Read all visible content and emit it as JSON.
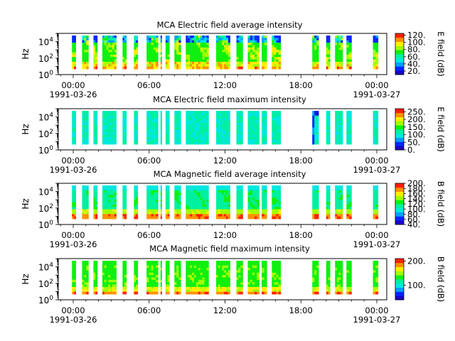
{
  "colors": {
    "colormap": [
      "#1a00c8",
      "#0028ff",
      "#00a0ff",
      "#00e8e0",
      "#00f0a0",
      "#10f010",
      "#a0ff00",
      "#ffee00",
      "#ff9000",
      "#ff2000"
    ],
    "axis": "#000000",
    "background": "#ffffff"
  },
  "chart_data": [
    {
      "type": "heatmap",
      "title": "MCA  Electric field average intensity",
      "ylabel": "Hz",
      "yscale": "log",
      "ylim": [
        1,
        100000
      ],
      "yticks": [
        {
          "value": 1,
          "base": "10",
          "exp": "0"
        },
        {
          "value": 100,
          "base": "10",
          "exp": "2"
        },
        {
          "value": 10000,
          "base": "10",
          "exp": "4"
        }
      ],
      "xticks": [
        "00:00",
        "06:00",
        "12:00",
        "18:00",
        "00:00"
      ],
      "xdates": [
        "1991-03-26",
        "",
        "",
        "",
        "1991-03-27"
      ],
      "colorbar": {
        "label": "E field (dB)",
        "min": 10,
        "max": 125,
        "ticks": [
          20,
          40,
          60,
          80,
          100,
          120
        ],
        "tick_labels": [
          "20.",
          "40.",
          "60.",
          "80.",
          "100.",
          "120."
        ]
      },
      "style": "avg_e"
    },
    {
      "type": "heatmap",
      "title": "MCA  Electric field maximum intensity",
      "ylabel": "Hz",
      "yscale": "log",
      "ylim": [
        1,
        100000
      ],
      "yticks": [
        {
          "value": 1,
          "base": "10",
          "exp": "0"
        },
        {
          "value": 100,
          "base": "10",
          "exp": "2"
        },
        {
          "value": 10000,
          "base": "10",
          "exp": "4"
        }
      ],
      "xticks": [
        "00:00",
        "06:00",
        "12:00",
        "18:00",
        "00:00"
      ],
      "xdates": [
        "1991-03-26",
        "",
        "",
        "",
        "1991-03-27"
      ],
      "colorbar": {
        "label": "E field (dB)",
        "min": 0,
        "max": 270,
        "ticks": [
          0,
          50,
          100,
          150,
          200,
          250
        ],
        "tick_labels": [
          "0.",
          "50.",
          "100.",
          "150.",
          "200.",
          "250."
        ]
      },
      "style": "max_e"
    },
    {
      "type": "heatmap",
      "title": "MCA  Magnetic field average intensity",
      "ylabel": "Hz",
      "yscale": "log",
      "ylim": [
        1,
        100000
      ],
      "yticks": [
        {
          "value": 1,
          "base": "10",
          "exp": "0"
        },
        {
          "value": 100,
          "base": "10",
          "exp": "2"
        },
        {
          "value": 10000,
          "base": "10",
          "exp": "4"
        }
      ],
      "xticks": [
        "00:00",
        "06:00",
        "12:00",
        "18:00",
        "00:00"
      ],
      "xdates": [
        "1991-03-26",
        "",
        "",
        "",
        "1991-03-27"
      ],
      "colorbar": {
        "label": "B field (dB)",
        "min": 40,
        "max": 200,
        "ticks": [
          40,
          60,
          80,
          100,
          120,
          140,
          160,
          180,
          200
        ],
        "tick_labels": [
          "40.",
          "60.",
          "80.",
          "100.",
          "120.",
          "140.",
          "160.",
          "180.",
          "200."
        ]
      },
      "style": "avg_b"
    },
    {
      "type": "heatmap",
      "title": "MCA  Magnetic field maximum intensity",
      "ylabel": "Hz",
      "yscale": "log",
      "ylim": [
        1,
        100000
      ],
      "yticks": [
        {
          "value": 1,
          "base": "10",
          "exp": "0"
        },
        {
          "value": 100,
          "base": "10",
          "exp": "2"
        },
        {
          "value": 10000,
          "base": "10",
          "exp": "4"
        }
      ],
      "xticks": [
        "00:00",
        "06:00",
        "12:00",
        "18:00",
        "00:00"
      ],
      "xdates": [
        "1991-03-26",
        "",
        "",
        "",
        "1991-03-27"
      ],
      "colorbar": {
        "label": "B field (dB)",
        "min": 40,
        "max": 210,
        "ticks": [
          100,
          200
        ],
        "tick_labels": [
          "100.",
          "200."
        ]
      },
      "style": "max_b"
    }
  ],
  "data_segments_hours": [
    [
      -0.1,
      0.2
    ],
    [
      0.7,
      1.2
    ],
    [
      1.6,
      1.9
    ],
    [
      2.3,
      3.4
    ],
    [
      3.9,
      4.2
    ],
    [
      4.8,
      5.1
    ],
    [
      5.8,
      6.7
    ],
    [
      6.9,
      7.0
    ],
    [
      7.3,
      7.6
    ],
    [
      8.0,
      8.5
    ],
    [
      8.9,
      10.7
    ],
    [
      11.3,
      12.4
    ],
    [
      12.9,
      13.4
    ],
    [
      13.8,
      14.7
    ],
    [
      14.9,
      15.3
    ],
    [
      15.7,
      16.4
    ],
    [
      18.9,
      19.4
    ],
    [
      20.0,
      20.3
    ],
    [
      20.7,
      21.3
    ],
    [
      21.6,
      22.0
    ],
    [
      23.7,
      24.1
    ]
  ]
}
